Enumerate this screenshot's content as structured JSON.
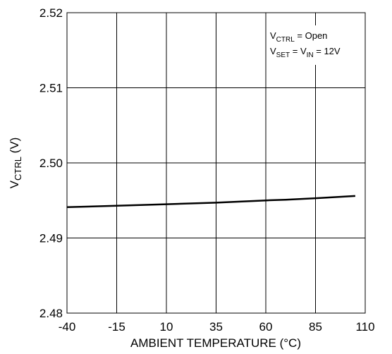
{
  "chart_data": {
    "type": "line",
    "xlabel": "AMBIENT TEMPERATURE (°C)",
    "ylabel": {
      "main": "V",
      "sub": "CTRL",
      "suffix": " (V)"
    },
    "xlim": [
      -40,
      110
    ],
    "ylim": [
      2.48,
      2.52
    ],
    "x_ticks": [
      "-40",
      "-15",
      "10",
      "35",
      "60",
      "85",
      "110"
    ],
    "y_ticks": [
      "2.48",
      "2.49",
      "2.50",
      "2.51",
      "2.52"
    ],
    "grid": true,
    "annotations": {
      "line1": {
        "v": "V",
        "sub": "CTRL",
        "rest": " = Open"
      },
      "line2": {
        "v1": "V",
        "sub1": "SET",
        "eq": " = V",
        "sub2": "IN",
        "rest": " = 12V"
      }
    },
    "series": [
      {
        "color": "#000000",
        "x": [
          -40,
          -15,
          10,
          35,
          60,
          70,
          85,
          105
        ],
        "y": [
          2.4941,
          2.4943,
          2.4945,
          2.4947,
          2.495,
          2.4951,
          2.4953,
          2.4956
        ]
      }
    ]
  }
}
